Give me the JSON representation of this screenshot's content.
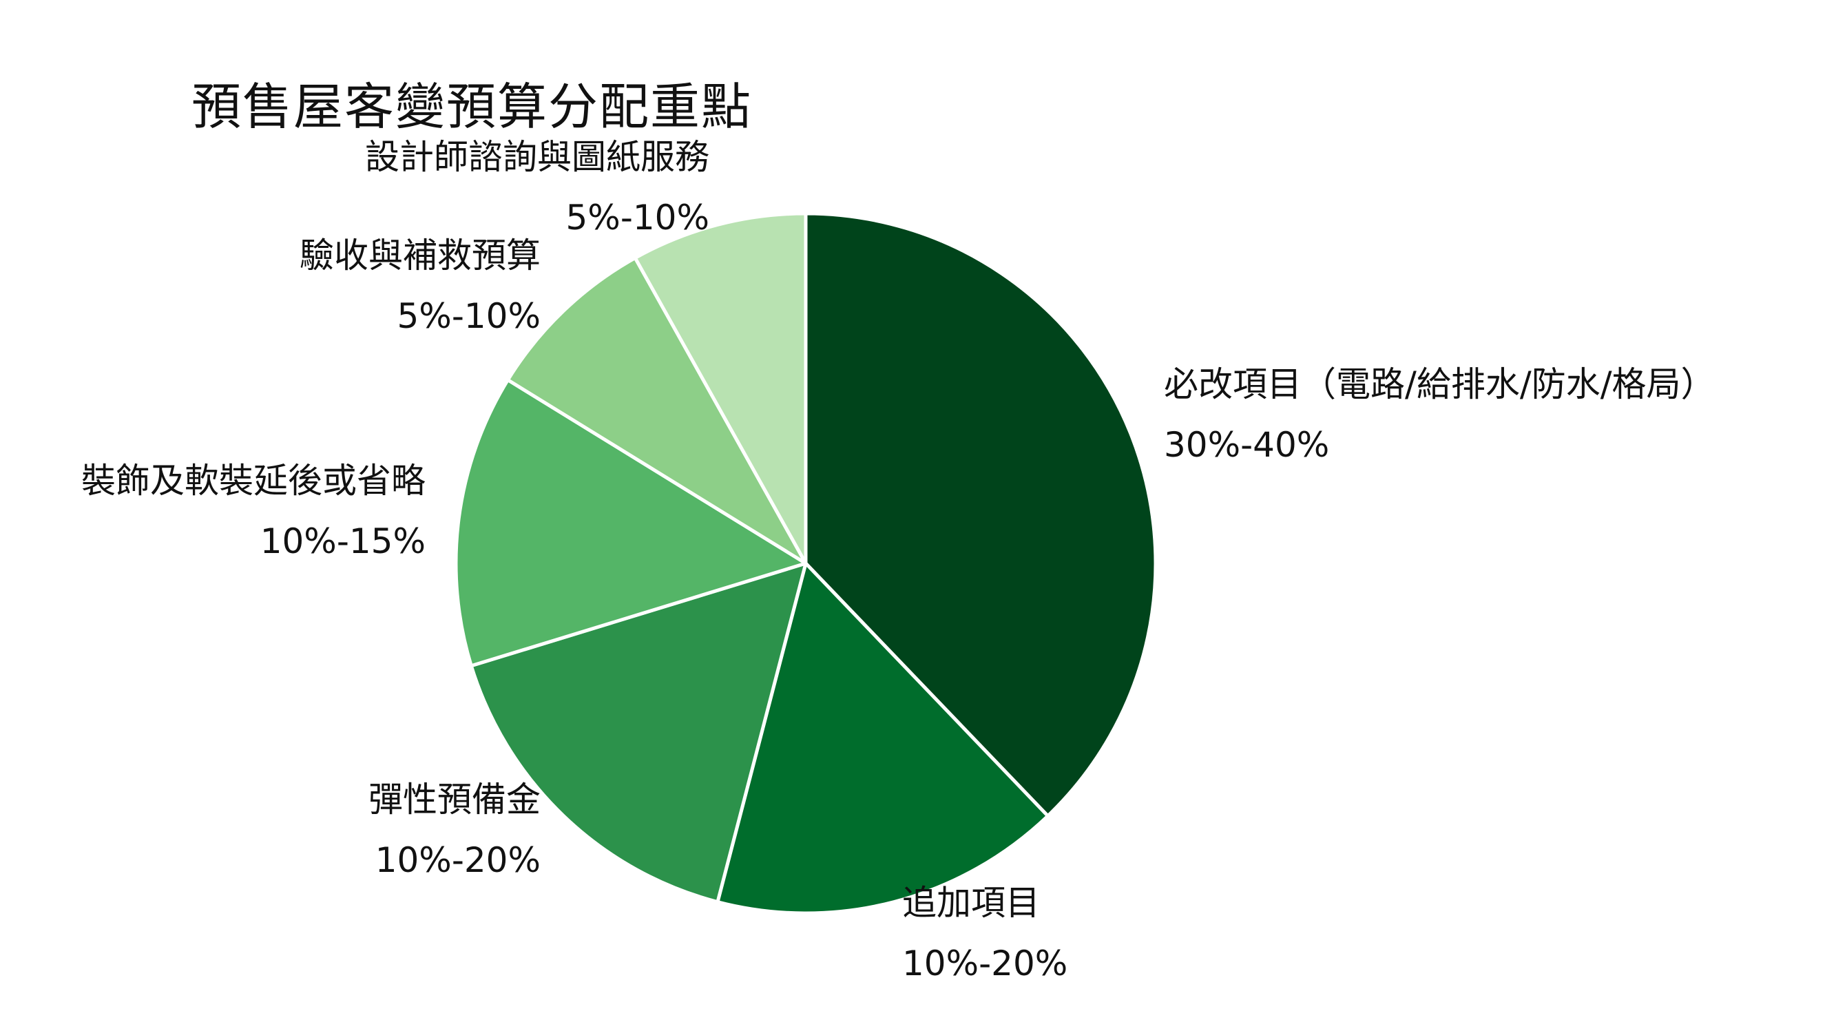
{
  "chart_data": {
    "type": "pie",
    "title": "預售屋客變預算分配重點",
    "colors": [
      "#00441b",
      "#006d2c",
      "#2c924b",
      "#54b567",
      "#8dcf88",
      "#b8e2b1"
    ],
    "slices": [
      {
        "label": "必改項目（電路/給排水/防水/格局）",
        "range": "30%-40%",
        "value": 35.0
      },
      {
        "label": "追加項目",
        "range": "10%-20%",
        "value": 15.0
      },
      {
        "label": "彈性預備金",
        "range": "10%-20%",
        "value": 15.0
      },
      {
        "label": "裝飾及軟裝延後或省略",
        "range": "10%-15%",
        "value": 12.5
      },
      {
        "label": "驗收與補救預算",
        "range": "5%-10%",
        "value": 7.5
      },
      {
        "label": "設計師諮詢與圖紙服務",
        "range": "5%-10%",
        "value": 7.5
      }
    ]
  }
}
